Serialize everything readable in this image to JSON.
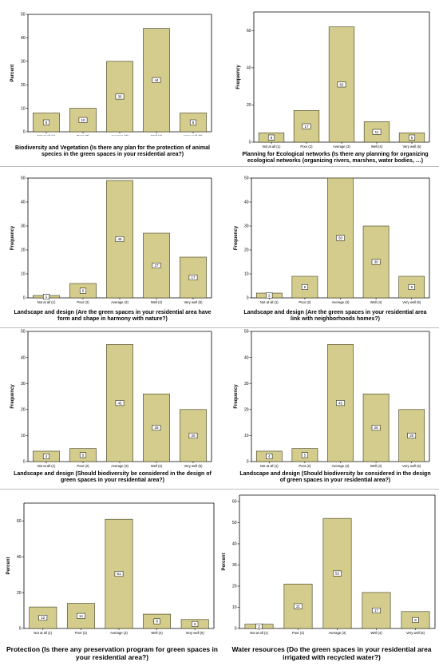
{
  "chart_data": [
    {
      "type": "bar",
      "ylabel": "Percent",
      "ylim": [
        0,
        50
      ],
      "yticks": [
        0,
        10,
        20,
        30,
        40,
        50
      ],
      "categories": [
        "Not at all (1)",
        "Poor (2)",
        "Average (3)",
        "Well (4)",
        "Very well (5)"
      ],
      "values": [
        8,
        10,
        30,
        44,
        8
      ],
      "value_labels": [
        "8",
        "10",
        "30",
        "44",
        "8"
      ],
      "title": "Biodiversity and Vegetation (Is there any plan for the protection of animal species in the green spaces in your residential area?)",
      "bar_color": "#d4cc8c",
      "grid": false
    },
    {
      "type": "bar",
      "ylabel": "Frequency",
      "ylim": [
        0,
        70
      ],
      "yticks": [
        0,
        20,
        40,
        60
      ],
      "categories": [
        "Not at all (1)",
        "Poor (2)",
        "Average (3)",
        "Well (4)",
        "Very well (5)"
      ],
      "values": [
        5,
        17,
        62,
        11,
        5
      ],
      "value_labels": [
        "5",
        "17",
        "62",
        "11",
        "5"
      ],
      "title": "Planning for Ecological networks (Is there any planning for organizing ecological networks (organizing rivers, marshes, water bodies, …)",
      "bar_color": "#d4cc8c",
      "grid": false
    },
    {
      "type": "bar",
      "ylabel": "Frequency",
      "ylim": [
        0,
        50
      ],
      "yticks": [
        0,
        10,
        20,
        30,
        40,
        50
      ],
      "categories": [
        "Not at all (1)",
        "Poor (2)",
        "Average (3)",
        "Well (4)",
        "Very well (5)"
      ],
      "values": [
        1,
        6,
        49,
        27,
        17
      ],
      "value_labels": [
        "1",
        "6",
        "49",
        "27",
        "17"
      ],
      "title": "Landscape and design (Are the green spaces in your residential area have form and shape in harmony with nature?)",
      "bar_color": "#d4cc8c",
      "grid": false
    },
    {
      "type": "bar",
      "ylabel": "Frequency",
      "ylim": [
        0,
        50
      ],
      "yticks": [
        0,
        10,
        20,
        30,
        40,
        50
      ],
      "categories": [
        "Not at all (1)",
        "Poor (2)",
        "Average (3)",
        "Well (4)",
        "Very well (5)"
      ],
      "values": [
        2,
        9,
        50,
        30,
        9
      ],
      "value_labels": [
        "2",
        "9",
        "50",
        "30",
        "9"
      ],
      "title": "Landscape and design (Are the green spaces in your residential area link with neighborhoods homes?)",
      "bar_color": "#d4cc8c",
      "grid": false
    },
    {
      "type": "bar",
      "ylabel": "Frequency",
      "ylim": [
        0,
        50
      ],
      "yticks": [
        0,
        10,
        20,
        30,
        40,
        50
      ],
      "categories": [
        "Not at all (1)",
        "Poor (2)",
        "Average (3)",
        "Well (4)",
        "Very well (5)"
      ],
      "values": [
        4,
        5,
        45,
        26,
        20
      ],
      "value_labels": [
        "4",
        "5",
        "45",
        "26",
        "20"
      ],
      "title": "Landscape and design (Should biodiversity be considered in the design of green spaces in your residential area?)",
      "bar_color": "#d4cc8c",
      "grid": false
    },
    {
      "type": "bar",
      "ylabel": "Frequency",
      "ylim": [
        0,
        50
      ],
      "yticks": [
        0,
        10,
        20,
        30,
        40,
        50
      ],
      "categories": [
        "Not at all (1)",
        "Poor (2)",
        "Average (3)",
        "Well (4)",
        "Very well (5)"
      ],
      "values": [
        4,
        5,
        45,
        26,
        20
      ],
      "value_labels": [
        "4",
        "5",
        "45",
        "26",
        "20"
      ],
      "title": "Landscape and design (Should biodiversity be considered in the design of green spaces in your residential area?)",
      "bar_color": "#d4cc8c",
      "grid": false
    },
    {
      "type": "bar",
      "ylabel": "Percent",
      "ylim": [
        0,
        70
      ],
      "yticks": [
        0,
        20,
        40,
        60
      ],
      "categories": [
        "Not at all (1)",
        "Poor (2)",
        "Average (3)",
        "Well (4)",
        "Very well (5)"
      ],
      "values": [
        12,
        14,
        61,
        8,
        5
      ],
      "value_labels": [
        "12",
        "14",
        "61",
        "8",
        "5"
      ],
      "title": "Protection (Is there any preservation program for green spaces in your residential area?)",
      "bar_color": "#d4cc8c",
      "grid": false
    },
    {
      "type": "bar",
      "ylabel": "Percent",
      "ylim": [
        0,
        63
      ],
      "yticks": [
        0,
        10,
        20,
        30,
        40,
        50,
        60
      ],
      "categories": [
        "Not at all (1)",
        "Poor (2)",
        "Average (3)",
        "Well (4)",
        "Very well (5)"
      ],
      "values": [
        2,
        21,
        52,
        17,
        8
      ],
      "value_labels": [
        "2",
        "21",
        "52",
        "17",
        "8"
      ],
      "title": "Water resources (Do the green spaces in your residential area irrigated with recycled water?)",
      "bar_color": "#d4cc8c",
      "grid": false
    }
  ]
}
